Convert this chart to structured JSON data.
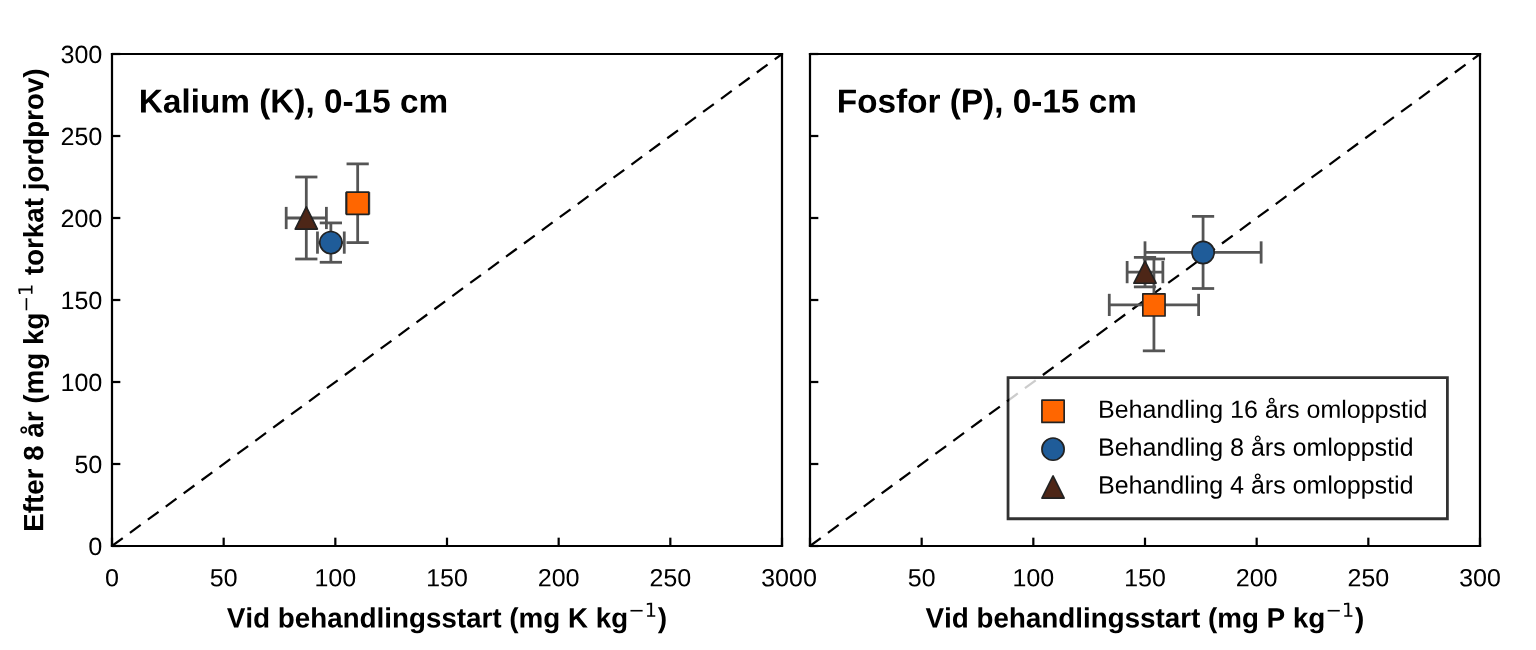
{
  "chart_data": [
    {
      "type": "scatter",
      "title": "Kalium (K), 0-15 cm",
      "xlabel": "Vid behandlingsstart (mg K kg$^{−1}$)",
      "ylabel": "Efter 8 år (mg kg$^{−1}$ torkat jordprov)",
      "xlim": [
        0,
        300
      ],
      "ylim": [
        0,
        300
      ],
      "xticks": [
        0,
        50,
        100,
        150,
        200,
        250,
        300
      ],
      "yticks": [
        0,
        50,
        100,
        150,
        200,
        250,
        300
      ],
      "grid": false,
      "legend": false,
      "series": [
        {
          "type": "line",
          "color": "#000000",
          "line_style": "dashed",
          "marker": "none",
          "x": [
            0,
            300
          ],
          "values": [
            0,
            300
          ]
        },
        {
          "color": "#ff6600",
          "marker": "square",
          "x": [
            110
          ],
          "values": [
            209
          ],
          "errors": [
            24
          ],
          "xerrors": [
            5
          ]
        },
        {
          "color": "#1f5c99",
          "marker": "circle",
          "x": [
            98
          ],
          "values": [
            185
          ],
          "errors": [
            12
          ],
          "xerrors": [
            6
          ]
        },
        {
          "color": "#4d2617",
          "marker": "triangle",
          "x": [
            87
          ],
          "values": [
            200
          ],
          "errors": [
            25
          ],
          "xerrors": [
            9
          ]
        }
      ]
    },
    {
      "type": "scatter",
      "title": "Fosfor (P), 0-15 cm",
      "xlabel": "Vid behandlingsstart (mg P kg$^{−1}$)",
      "xlim": [
        0,
        300
      ],
      "ylim": [
        0,
        300
      ],
      "xticks": [
        0,
        50,
        100,
        150,
        200,
        250,
        300
      ],
      "yticks": [
        0,
        50,
        100,
        150,
        200,
        250,
        300
      ],
      "tick_labels": "x",
      "grid": false,
      "legend": "bottom right",
      "series": [
        {
          "type": "line",
          "color": "#000000",
          "line_style": "dashed",
          "marker": "none",
          "x": [
            0,
            300
          ],
          "values": [
            0,
            300
          ]
        },
        {
          "name": "Behandling 16 års omloppstid",
          "color": "#ff6600",
          "marker": "square",
          "x": [
            154
          ],
          "values": [
            147
          ],
          "errors": [
            28
          ],
          "xerrors": [
            20
          ]
        },
        {
          "name": "Behandling 8 års omloppstid",
          "color": "#1f5c99",
          "marker": "circle",
          "x": [
            176
          ],
          "values": [
            179
          ],
          "errors": [
            22
          ],
          "xerrors": [
            26
          ]
        },
        {
          "name": "Behandling 4 års omloppstid",
          "color": "#4d2617",
          "marker": "triangle",
          "x": [
            150
          ],
          "values": [
            167
          ],
          "errors": [
            9
          ],
          "xerrors": [
            8
          ]
        }
      ]
    }
  ]
}
